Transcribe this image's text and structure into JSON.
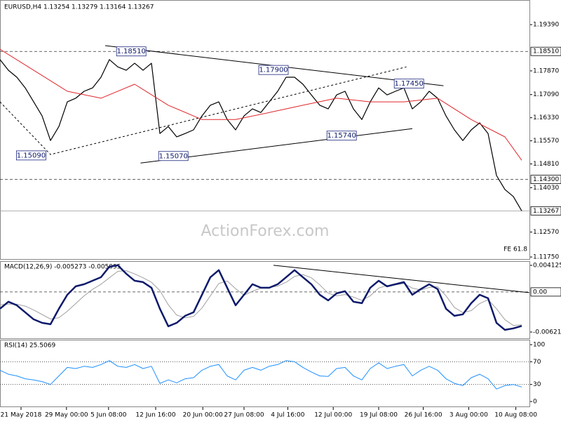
{
  "chart_data": [
    {
      "type": "line",
      "title": "EURUSD,H4  1.13254 1.13279 1.13164 1.13267",
      "watermark": "ActionForex.com",
      "note": "FE 61.8",
      "x": [
        0,
        1,
        2,
        3,
        4,
        5,
        6,
        7,
        8,
        9,
        10,
        11,
        12,
        13,
        14,
        15,
        16,
        17,
        18,
        19,
        20,
        21,
        22,
        23,
        24,
        25,
        26,
        27,
        28,
        29,
        30,
        31,
        32,
        33,
        34,
        35,
        36,
        37,
        38,
        39,
        40,
        41,
        42,
        43,
        44,
        45,
        46,
        47,
        48,
        49,
        50,
        51,
        52,
        53,
        54,
        55,
        56,
        57,
        58,
        59,
        60,
        61,
        62
      ],
      "xlim": [
        0,
        63
      ],
      "ylim": [
        1.1166,
        1.202
      ],
      "yticks": [
        {
          "value": 1.1939,
          "label": "1.19390"
        },
        {
          "value": 1.1787,
          "label": "1.17870"
        },
        {
          "value": 1.1709,
          "label": "1.17090"
        },
        {
          "value": 1.1633,
          "label": "1.16330"
        },
        {
          "value": 1.1557,
          "label": "1.15570"
        },
        {
          "value": 1.1481,
          "label": "1.14810"
        },
        {
          "value": 1.1403,
          "label": "1.14030"
        },
        {
          "value": 1.1257,
          "label": "1.12570"
        },
        {
          "value": 1.1175,
          "label": "1.11750"
        }
      ],
      "series": [
        {
          "color": "#000000",
          "width": 1.2,
          "values": [
            1.1824,
            1.1789,
            1.1766,
            1.1731,
            1.1685,
            1.1639,
            1.1558,
            1.1604,
            1.1685,
            1.1697,
            1.172,
            1.1731,
            1.1766,
            1.1824,
            1.18,
            1.1789,
            1.1812,
            1.1789,
            1.1812,
            1.1581,
            1.1604,
            1.157,
            1.1581,
            1.1593,
            1.1639,
            1.1674,
            1.1685,
            1.1627,
            1.1593,
            1.1639,
            1.1662,
            1.165,
            1.1685,
            1.172,
            1.1766,
            1.1766,
            1.1743,
            1.1708,
            1.1674,
            1.1662,
            1.1708,
            1.172,
            1.1662,
            1.1627,
            1.1685,
            1.1731,
            1.1708,
            1.172,
            1.1731,
            1.1662,
            1.1685,
            1.172,
            1.1697,
            1.1639,
            1.1593,
            1.1558,
            1.1593,
            1.1616,
            1.1581,
            1.1443,
            1.1397,
            1.1374,
            1.13267
          ]
        },
        {
          "color": "#e0262b",
          "width": 1,
          "x": [
            0,
            4,
            8,
            12,
            16,
            20,
            24,
            28,
            32,
            36,
            40,
            44,
            48,
            52,
            56,
            60,
            62
          ],
          "values": [
            1.1858,
            1.1789,
            1.172,
            1.1697,
            1.1743,
            1.1674,
            1.1627,
            1.1627,
            1.165,
            1.1674,
            1.1697,
            1.1685,
            1.1685,
            1.1697,
            1.1627,
            1.157,
            1.1493
          ]
        }
      ],
      "levels": [
        {
          "value": 1.1851,
          "label": "1.18510",
          "style": "dashed"
        },
        {
          "value": 1.143,
          "label": "1.14300",
          "style": "dashed"
        },
        {
          "value": 1.13267,
          "label": "1.13267",
          "style": "solid"
        }
      ],
      "lines": [
        {
          "x": [
            12.5,
            52.7
          ],
          "y": [
            1.187,
            1.1738
          ],
          "dash": false
        },
        {
          "x": [
            16.7,
            49
          ],
          "y": [
            1.1484,
            1.1597
          ],
          "dash": false
        },
        {
          "x": [
            0,
            6,
            48.3
          ],
          "y": [
            1.1685,
            1.1512,
            1.18
          ],
          "dash": true
        }
      ],
      "annotations": [
        {
          "label": "1.18510",
          "x": 15.6,
          "y": 1.1851
        },
        {
          "label": "1.17900",
          "x": 32.5,
          "y": 1.179
        },
        {
          "label": "1.17450",
          "x": 48.6,
          "y": 1.1745
        },
        {
          "label": "1.15740",
          "x": 40.6,
          "y": 1.1574
        },
        {
          "label": "1.15090",
          "x": 3.7,
          "y": 1.1509
        },
        {
          "label": "1.15070",
          "x": 20.6,
          "y": 1.1507
        }
      ]
    },
    {
      "type": "line",
      "title": "MACD(12,26,9) -0.005273 -0.005095",
      "x": [
        0,
        1,
        2,
        3,
        4,
        5,
        6,
        7,
        8,
        9,
        10,
        11,
        12,
        13,
        14,
        15,
        16,
        17,
        18,
        19,
        20,
        21,
        22,
        23,
        24,
        25,
        26,
        27,
        28,
        29,
        30,
        31,
        32,
        33,
        34,
        35,
        36,
        37,
        38,
        39,
        40,
        41,
        42,
        43,
        44,
        45,
        46,
        47,
        48,
        49,
        50,
        51,
        52,
        53,
        54,
        55,
        56,
        57,
        58,
        59,
        60,
        61,
        62
      ],
      "xlim": [
        0,
        63
      ],
      "ylim": [
        -0.00731,
        0.00467
      ],
      "yticks": [
        0.004125,
        -0.006218
      ],
      "series": [
        {
          "color": "#a0a0a0",
          "width": 1,
          "values": [
            -0.002,
            -0.0019,
            -0.0019,
            -0.0022,
            -0.0028,
            -0.0035,
            -0.0042,
            -0.004,
            -0.003,
            -0.0018,
            -0.0006,
            0.0004,
            0.0012,
            0.0022,
            0.0032,
            0.0033,
            0.0028,
            0.0022,
            0.0015,
            0.0002,
            -0.002,
            -0.0036,
            -0.004,
            -0.0038,
            -0.0025,
            -0.0006,
            0.0013,
            0.0017,
            0.0005,
            -0.0005,
            0.0001,
            0.0006,
            0.0007,
            0.0009,
            0.0015,
            0.0024,
            0.0027,
            0.0022,
            0.0011,
            -0.0002,
            -0.0006,
            -0.0004,
            -0.0008,
            -0.0013,
            -0.0006,
            0.0006,
            0.001,
            0.0011,
            0.0013,
            0.0006,
            0.0003,
            0.0007,
            0.0008,
            -0.0006,
            -0.0024,
            -0.0032,
            -0.0029,
            -0.0018,
            -0.0012,
            -0.0026,
            -0.0043,
            -0.0052,
            -0.0051
          ]
        },
        {
          "color": "#0d1a6b",
          "width": 2.5,
          "values": [
            -0.00261,
            -0.00152,
            -0.00207,
            -0.00316,
            -0.00425,
            -0.00479,
            -0.00501,
            -0.00261,
            -0.00044,
            0.00087,
            0.0012,
            0.00174,
            0.00229,
            0.00392,
            0.00414,
            0.00283,
            0.00174,
            0.00152,
            0.00065,
            -0.00261,
            -0.00533,
            -0.00479,
            -0.0037,
            -0.00316,
            -0.00044,
            0.00229,
            0.00338,
            0.00065,
            -0.00207,
            -0.00044,
            0.0012,
            0.00065,
            0.00065,
            0.0012,
            0.00229,
            0.00338,
            0.00229,
            0.0012,
            -0.00044,
            -0.00131,
            -0.00022,
            0.00011,
            -0.00152,
            -0.00174,
            0.00065,
            0.00174,
            0.00087,
            0.0012,
            0.00152,
            -0.00044,
            0.00044,
            0.0012,
            0.00044,
            -0.00261,
            -0.0037,
            -0.00348,
            -0.00174,
            -0.00044,
            -0.00098,
            -0.00479,
            -0.00588,
            -0.00566,
            -0.00527
          ]
        }
      ],
      "levels": [
        {
          "value": 0,
          "label": "0.00",
          "style": "dashed"
        }
      ],
      "lines": [
        {
          "x": [
            32.5,
            62.9
          ],
          "y": [
            0.00414,
            -0.00011
          ],
          "dash": false
        }
      ]
    },
    {
      "type": "line",
      "title": "RSI(14) 25.5069",
      "x": [
        0,
        1,
        2,
        3,
        4,
        5,
        6,
        7,
        8,
        9,
        10,
        11,
        12,
        13,
        14,
        15,
        16,
        17,
        18,
        19,
        20,
        21,
        22,
        23,
        24,
        25,
        26,
        27,
        28,
        29,
        30,
        31,
        32,
        33,
        34,
        35,
        36,
        37,
        38,
        39,
        40,
        41,
        42,
        43,
        44,
        45,
        46,
        47,
        48,
        49,
        50,
        51,
        52,
        53,
        54,
        55,
        56,
        57,
        58,
        59,
        60,
        61,
        62
      ],
      "xlim": [
        0,
        63
      ],
      "ylim": [
        -9.9,
        107.4
      ],
      "yticks": [
        100,
        70,
        30,
        0
      ],
      "xticks": [
        {
          "value": 2.5,
          "label": "21 May 2018"
        },
        {
          "value": 7.9,
          "label": "29 May 00:00"
        },
        {
          "value": 12.9,
          "label": "5 Jun 08:00"
        },
        {
          "value": 18.5,
          "label": "12 Jun 16:00"
        },
        {
          "value": 24.1,
          "label": "20 Jun 00:00"
        },
        {
          "value": 29,
          "label": "27 Jun 08:00"
        },
        {
          "value": 34.2,
          "label": "4 Jul 16:00"
        },
        {
          "value": 39.6,
          "label": "12 Jul 00:00"
        },
        {
          "value": 45,
          "label": "19 Jul 08:00"
        },
        {
          "value": 50.3,
          "label": "26 Jul 16:00"
        },
        {
          "value": 55.7,
          "label": "3 Aug 00:00"
        },
        {
          "value": 61.3,
          "label": "10 Aug 08:00"
        }
      ],
      "series": [
        {
          "color": "#1e90ff",
          "width": 1,
          "values": [
            55,
            48,
            45,
            40,
            38,
            35,
            30,
            45,
            60,
            58,
            62,
            60,
            65,
            72,
            62,
            60,
            65,
            58,
            62,
            32,
            38,
            33,
            40,
            42,
            55,
            62,
            65,
            45,
            38,
            55,
            60,
            55,
            62,
            65,
            72,
            70,
            60,
            52,
            45,
            44,
            58,
            60,
            45,
            38,
            58,
            68,
            58,
            62,
            65,
            45,
            55,
            62,
            55,
            40,
            32,
            28,
            42,
            48,
            40,
            22,
            28,
            30,
            25.5
          ]
        }
      ],
      "levels": [
        {
          "value": 70,
          "style": "dotted"
        },
        {
          "value": 30,
          "style": "dotted"
        }
      ]
    }
  ]
}
